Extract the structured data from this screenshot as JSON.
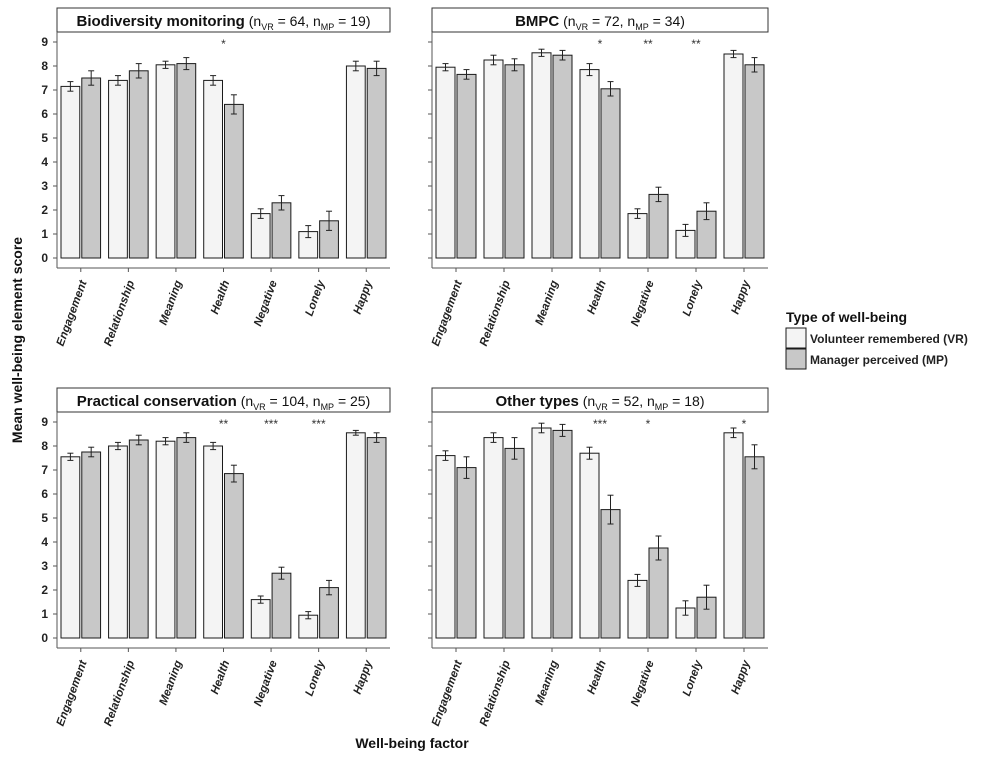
{
  "figure": {
    "y_axis_label": "Mean well-being element score",
    "x_axis_label": "Well-being factor",
    "legend": {
      "title": "Type of well-being",
      "entries": [
        {
          "label": "Volunteer remembered (VR)",
          "color": "#f4f4f4"
        },
        {
          "label": "Manager perceived (MP)",
          "color": "#c8c8c8"
        }
      ]
    },
    "bar_stroke_color": "#1a1a1a"
  },
  "chart_data": [
    {
      "type": "bar",
      "title_main": "Biodiversity monitoring",
      "n_vr": "64",
      "n_mp": "19",
      "categories": [
        "Engagement",
        "Relationship",
        "Meaning",
        "Health",
        "Negative",
        "Lonely",
        "Happy"
      ],
      "series": [
        {
          "name": "Volunteer remembered (VR)",
          "values": [
            7.15,
            7.4,
            8.05,
            7.4,
            1.85,
            1.1,
            8.0
          ],
          "errors": [
            0.2,
            0.2,
            0.15,
            0.2,
            0.2,
            0.25,
            0.2
          ]
        },
        {
          "name": "Manager perceived (MP)",
          "values": [
            7.5,
            7.8,
            8.1,
            6.4,
            2.3,
            1.55,
            7.9
          ],
          "errors": [
            0.3,
            0.3,
            0.25,
            0.4,
            0.3,
            0.4,
            0.3
          ]
        }
      ],
      "significance": [
        "",
        "",
        "",
        "*",
        "",
        "",
        ""
      ],
      "ylim": [
        0,
        9
      ],
      "yticks": [
        0,
        1,
        2,
        3,
        4,
        5,
        6,
        7,
        8,
        9
      ]
    },
    {
      "type": "bar",
      "title_main": "BMPC",
      "n_vr": "72",
      "n_mp": "34",
      "categories": [
        "Engagement",
        "Relationship",
        "Meaning",
        "Health",
        "Negative",
        "Lonely",
        "Happy"
      ],
      "series": [
        {
          "name": "Volunteer remembered (VR)",
          "values": [
            7.95,
            8.25,
            8.55,
            7.85,
            1.85,
            1.15,
            8.5
          ],
          "errors": [
            0.15,
            0.2,
            0.15,
            0.25,
            0.2,
            0.25,
            0.15
          ]
        },
        {
          "name": "Manager perceived (MP)",
          "values": [
            7.65,
            8.05,
            8.45,
            7.05,
            2.65,
            1.95,
            8.05
          ],
          "errors": [
            0.2,
            0.25,
            0.2,
            0.3,
            0.3,
            0.35,
            0.3
          ]
        }
      ],
      "significance": [
        "",
        "",
        "",
        "*",
        "**",
        "**",
        ""
      ],
      "ylim": [
        0,
        9
      ],
      "yticks": [
        0,
        1,
        2,
        3,
        4,
        5,
        6,
        7,
        8,
        9
      ]
    },
    {
      "type": "bar",
      "title_main": "Practical conservation",
      "n_vr": "104",
      "n_mp": "25",
      "categories": [
        "Engagement",
        "Relationship",
        "Meaning",
        "Health",
        "Negative",
        "Lonely",
        "Happy"
      ],
      "series": [
        {
          "name": "Volunteer remembered (VR)",
          "values": [
            7.55,
            8.0,
            8.2,
            8.0,
            1.6,
            0.95,
            8.55
          ],
          "errors": [
            0.15,
            0.15,
            0.15,
            0.15,
            0.15,
            0.15,
            0.1
          ]
        },
        {
          "name": "Manager perceived (MP)",
          "values": [
            7.75,
            8.25,
            8.35,
            6.85,
            2.7,
            2.1,
            8.35
          ],
          "errors": [
            0.2,
            0.2,
            0.2,
            0.35,
            0.25,
            0.3,
            0.2
          ]
        }
      ],
      "significance": [
        "",
        "",
        "",
        "**",
        "***",
        "***",
        ""
      ],
      "ylim": [
        0,
        9
      ],
      "yticks": [
        0,
        1,
        2,
        3,
        4,
        5,
        6,
        7,
        8,
        9
      ]
    },
    {
      "type": "bar",
      "title_main": "Other types",
      "n_vr": "52",
      "n_mp": "18",
      "categories": [
        "Engagement",
        "Relationship",
        "Meaning",
        "Health",
        "Negative",
        "Lonely",
        "Happy"
      ],
      "series": [
        {
          "name": "Volunteer remembered (VR)",
          "values": [
            7.6,
            8.35,
            8.75,
            7.7,
            2.4,
            1.25,
            8.55
          ],
          "errors": [
            0.2,
            0.2,
            0.2,
            0.25,
            0.25,
            0.3,
            0.2
          ]
        },
        {
          "name": "Manager perceived (MP)",
          "values": [
            7.1,
            7.9,
            8.65,
            5.35,
            3.75,
            1.7,
            7.55
          ],
          "errors": [
            0.45,
            0.45,
            0.25,
            0.6,
            0.5,
            0.5,
            0.5
          ]
        }
      ],
      "significance": [
        "",
        "",
        "",
        "***",
        "*",
        "",
        "*"
      ],
      "ylim": [
        0,
        9
      ],
      "yticks": [
        0,
        1,
        2,
        3,
        4,
        5,
        6,
        7,
        8,
        9
      ]
    }
  ]
}
